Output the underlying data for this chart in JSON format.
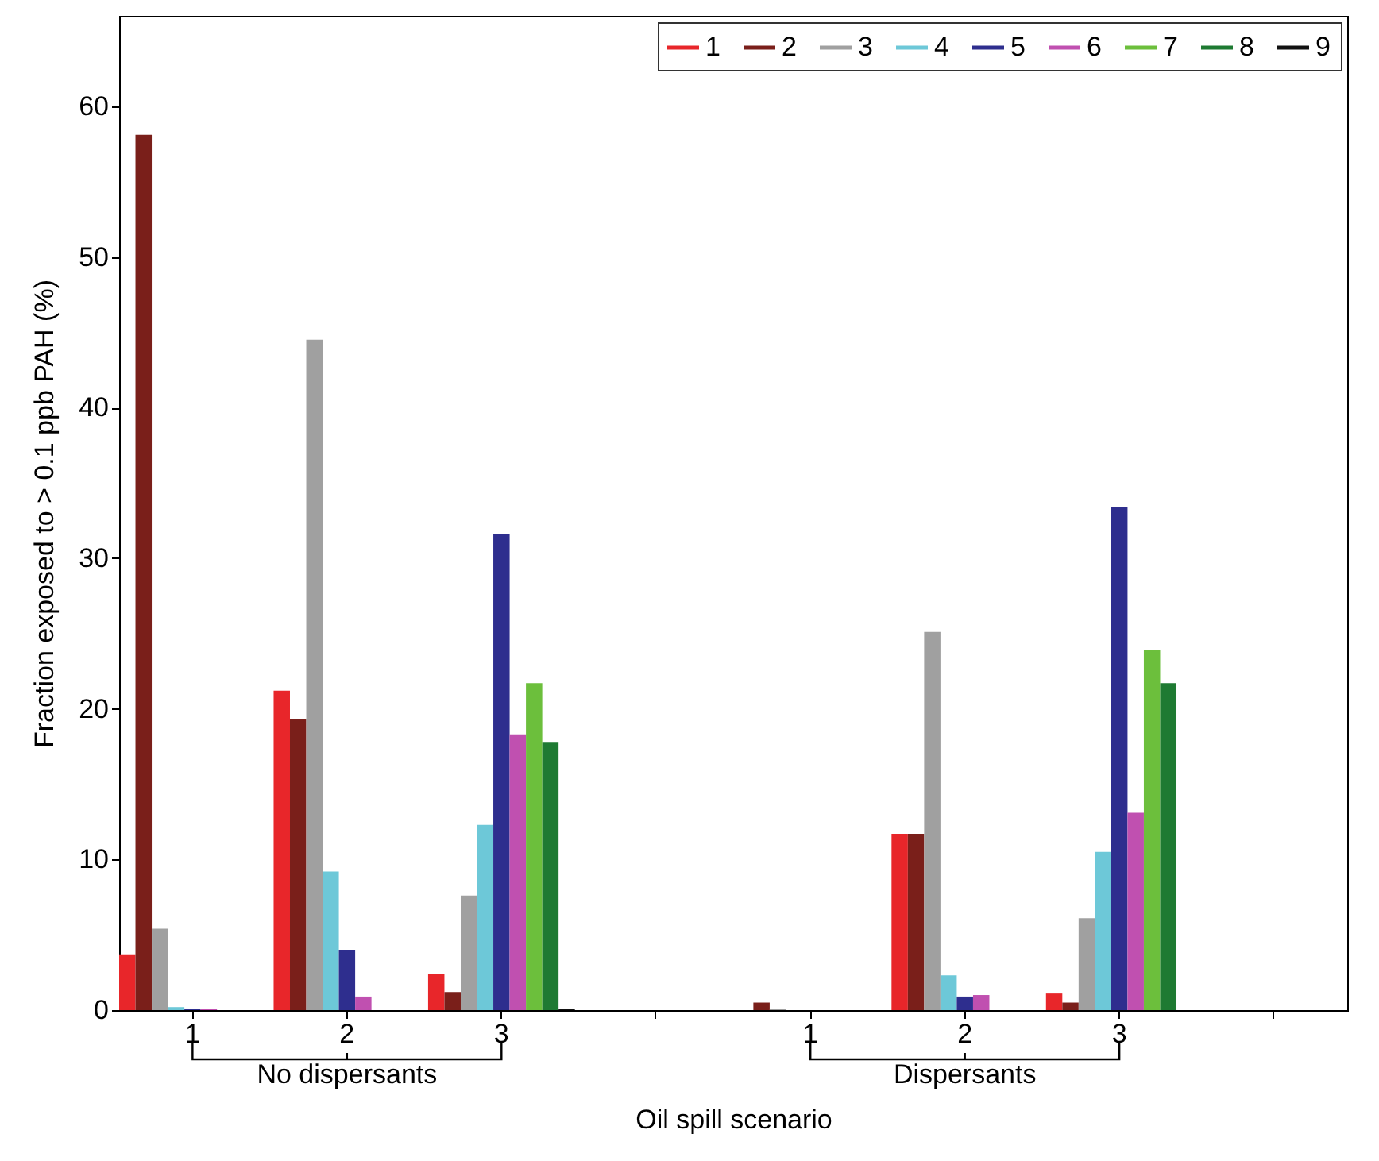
{
  "chart_data": {
    "type": "bar",
    "ylabel": "Fraction exposed to > 0.1 ppb PAH (%)",
    "xlabel": "Oil spill scenario",
    "categories": [
      "1",
      "2",
      "3",
      null,
      "1",
      "2",
      "3",
      null
    ],
    "series": [
      {
        "name": "1",
        "color": "#e8262a",
        "values": [
          3.7,
          21.2,
          2.4,
          null,
          0,
          11.7,
          1.1,
          null
        ]
      },
      {
        "name": "2",
        "color": "#7a1f1a",
        "values": [
          58.1,
          19.3,
          1.2,
          null,
          0.5,
          11.7,
          0.5,
          null
        ]
      },
      {
        "name": "3",
        "color": "#a0a0a0",
        "values": [
          5.4,
          44.5,
          7.6,
          null,
          0.1,
          25.1,
          6.1,
          null
        ]
      },
      {
        "name": "4",
        "color": "#6dc8d8",
        "values": [
          0.2,
          9.2,
          12.3,
          null,
          0,
          2.3,
          10.5,
          null
        ]
      },
      {
        "name": "5",
        "color": "#2e2e8e",
        "values": [
          0.1,
          4.0,
          31.6,
          null,
          0,
          0.9,
          33.4,
          null
        ]
      },
      {
        "name": "6",
        "color": "#c050b0",
        "values": [
          0.1,
          0.9,
          18.3,
          null,
          0,
          1.0,
          13.1,
          null
        ]
      },
      {
        "name": "7",
        "color": "#6cbf3c",
        "values": [
          0,
          0,
          21.7,
          null,
          0,
          0,
          23.9,
          null
        ]
      },
      {
        "name": "8",
        "color": "#1e7a32",
        "values": [
          0,
          0,
          17.8,
          null,
          0,
          0,
          21.7,
          null
        ]
      },
      {
        "name": "9",
        "color": "#111111",
        "values": [
          0,
          0,
          0.1,
          null,
          0,
          0,
          0,
          null
        ]
      }
    ],
    "ylim": [
      0,
      66
    ],
    "yticks": [
      0,
      10,
      20,
      30,
      40,
      50,
      60
    ],
    "grid": false,
    "legend": "top right",
    "annotations": [
      "No dispersants",
      "Dispersants"
    ]
  }
}
